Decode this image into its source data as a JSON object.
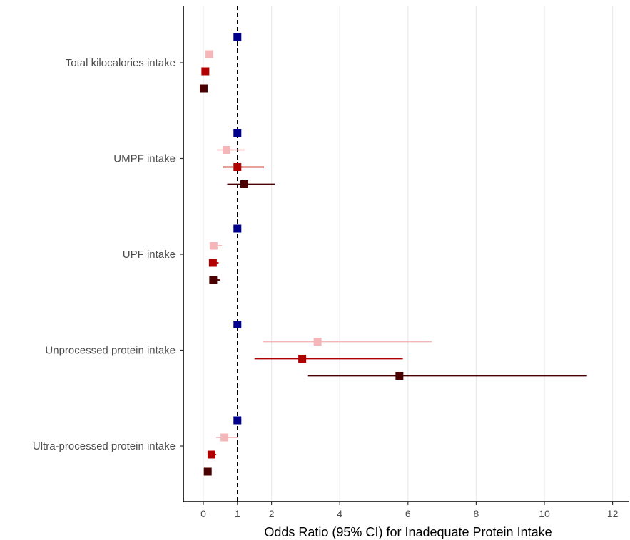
{
  "chart_data": {
    "type": "forest",
    "xlabel": "Odds Ratio (95% CI) for Inadequate Protein Intake",
    "ylabel": "",
    "xlim": [
      -0.6,
      12.5
    ],
    "xticks": [
      0,
      1,
      2,
      4,
      6,
      8,
      10,
      12
    ],
    "gridlines_at": [
      0,
      2,
      4,
      6,
      8,
      10,
      12
    ],
    "reference_line": 1,
    "legend": "none",
    "categories": [
      "Total kilocalories intake",
      "UMPF intake",
      "UPF intake",
      "Unprocessed protein intake",
      "Ultra-processed protein intake"
    ],
    "series": [
      {
        "color": "#00008B",
        "points": [
          {
            "or": 1.0,
            "low": 1.0,
            "high": 1.0
          },
          {
            "or": 1.0,
            "low": 1.0,
            "high": 1.0
          },
          {
            "or": 1.0,
            "low": 1.0,
            "high": 1.0
          },
          {
            "or": 1.0,
            "low": 1.0,
            "high": 1.0
          },
          {
            "or": 1.0,
            "low": 1.0,
            "high": 1.0
          }
        ]
      },
      {
        "color": "#F4B6B8",
        "points": [
          {
            "or": 0.18,
            "low": 0.14,
            "high": 0.22
          },
          {
            "or": 0.68,
            "low": 0.4,
            "high": 1.22
          },
          {
            "or": 0.3,
            "low": 0.2,
            "high": 0.55
          },
          {
            "or": 3.35,
            "low": 1.75,
            "high": 6.7
          },
          {
            "or": 0.62,
            "low": 0.38,
            "high": 1.02
          }
        ]
      },
      {
        "color": "#B20000",
        "points": [
          {
            "or": 0.06,
            "low": 0.05,
            "high": 0.08
          },
          {
            "or": 1.0,
            "low": 0.58,
            "high": 1.78
          },
          {
            "or": 0.28,
            "low": 0.2,
            "high": 0.45
          },
          {
            "or": 2.9,
            "low": 1.5,
            "high": 5.85
          },
          {
            "or": 0.24,
            "low": 0.17,
            "high": 0.38
          }
        ]
      },
      {
        "color": "#4A0000",
        "points": [
          {
            "or": 0.01,
            "low": 0.01,
            "high": 0.02
          },
          {
            "or": 1.2,
            "low": 0.7,
            "high": 2.1
          },
          {
            "or": 0.29,
            "low": 0.2,
            "high": 0.5
          },
          {
            "or": 5.75,
            "low": 3.05,
            "high": 11.25
          },
          {
            "or": 0.13,
            "low": 0.09,
            "high": 0.2
          }
        ]
      }
    ]
  }
}
